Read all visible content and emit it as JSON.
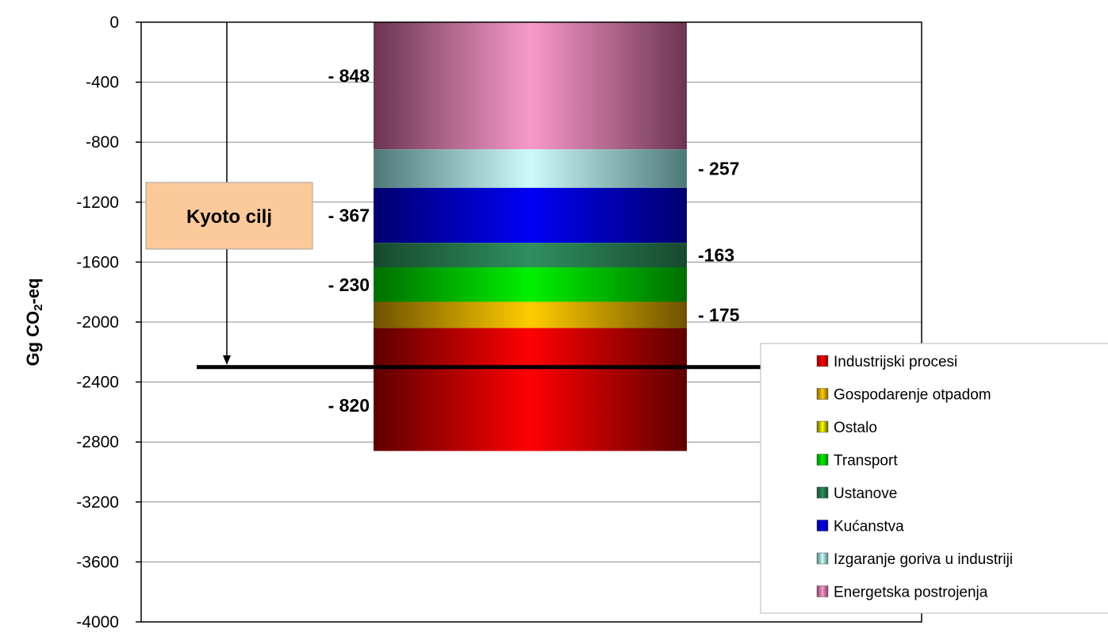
{
  "chart_data": {
    "type": "bar",
    "stacked": true,
    "ylabel": "Gg CO",
    "ylabel_sub": "2",
    "ylabel_suffix": "-eq",
    "ylim": [
      0,
      -4000
    ],
    "yticks": [
      0,
      -400,
      -800,
      -1200,
      -1600,
      -2000,
      -2400,
      -2800,
      -3200,
      -3600,
      -4000
    ],
    "ytick_labels": [
      "0",
      "-400",
      "-800",
      "-1200",
      "-1600",
      "-2000",
      "-2400",
      "-2800",
      "-3200",
      "-3600",
      "-4000"
    ],
    "grid": true,
    "legend_position": "right",
    "series": [
      {
        "name": "Energetska postrojenja",
        "value": -848,
        "label": "- 848",
        "label_side": "left",
        "color": "#f89ac9",
        "edge": "#6b3550"
      },
      {
        "name": "Izgaranje goriva u industriji",
        "value": -257,
        "label": "- 257",
        "label_side": "right",
        "color": "#cdfafa",
        "edge": "#4e7878"
      },
      {
        "name": "Kućanstva",
        "value": -367,
        "label": "- 367",
        "label_side": "left",
        "color": "#0000f5",
        "edge": "#00006e"
      },
      {
        "name": "Ustanove",
        "value": -163,
        "label": "-163",
        "label_side": "right",
        "color": "#2f8f5e",
        "edge": "#17492f"
      },
      {
        "name": "Transport",
        "value": -230,
        "label": "- 230",
        "label_side": "left",
        "color": "#00f000",
        "edge": "#006e00"
      },
      {
        "name": "Gospodarenje otpadom",
        "value": -175,
        "label": "- 175",
        "label_side": "right",
        "color": "#ffcc00",
        "edge": "#6e5200"
      },
      {
        "name": "Industrijski procesi",
        "value": -820,
        "label": "- 820",
        "label_side": "left",
        "color": "#ff0000",
        "edge": "#5e0000"
      }
    ],
    "legend": [
      {
        "name": "Industrijski procesi",
        "color": "#ff0000",
        "edge": "#800000"
      },
      {
        "name": "Gospodarenje otpadom",
        "color": "#ffcc00",
        "edge": "#806000"
      },
      {
        "name": "Ostalo",
        "color": "#ffff00",
        "edge": "#606000"
      },
      {
        "name": "Transport",
        "color": "#00f000",
        "edge": "#008000"
      },
      {
        "name": "Ustanove",
        "color": "#2f8f5e",
        "edge": "#17492f"
      },
      {
        "name": "Kućanstva",
        "color": "#0000f5",
        "edge": "#000080"
      },
      {
        "name": "Izgaranje goriva u industriji",
        "color": "#cdfafa",
        "edge": "#508080"
      },
      {
        "name": "Energetska postrojenja",
        "color": "#f89ac9",
        "edge": "#804060"
      }
    ],
    "annotation": {
      "label": "Kyoto cilj",
      "target_value": -2300,
      "box_color": "#fcc99b"
    }
  }
}
